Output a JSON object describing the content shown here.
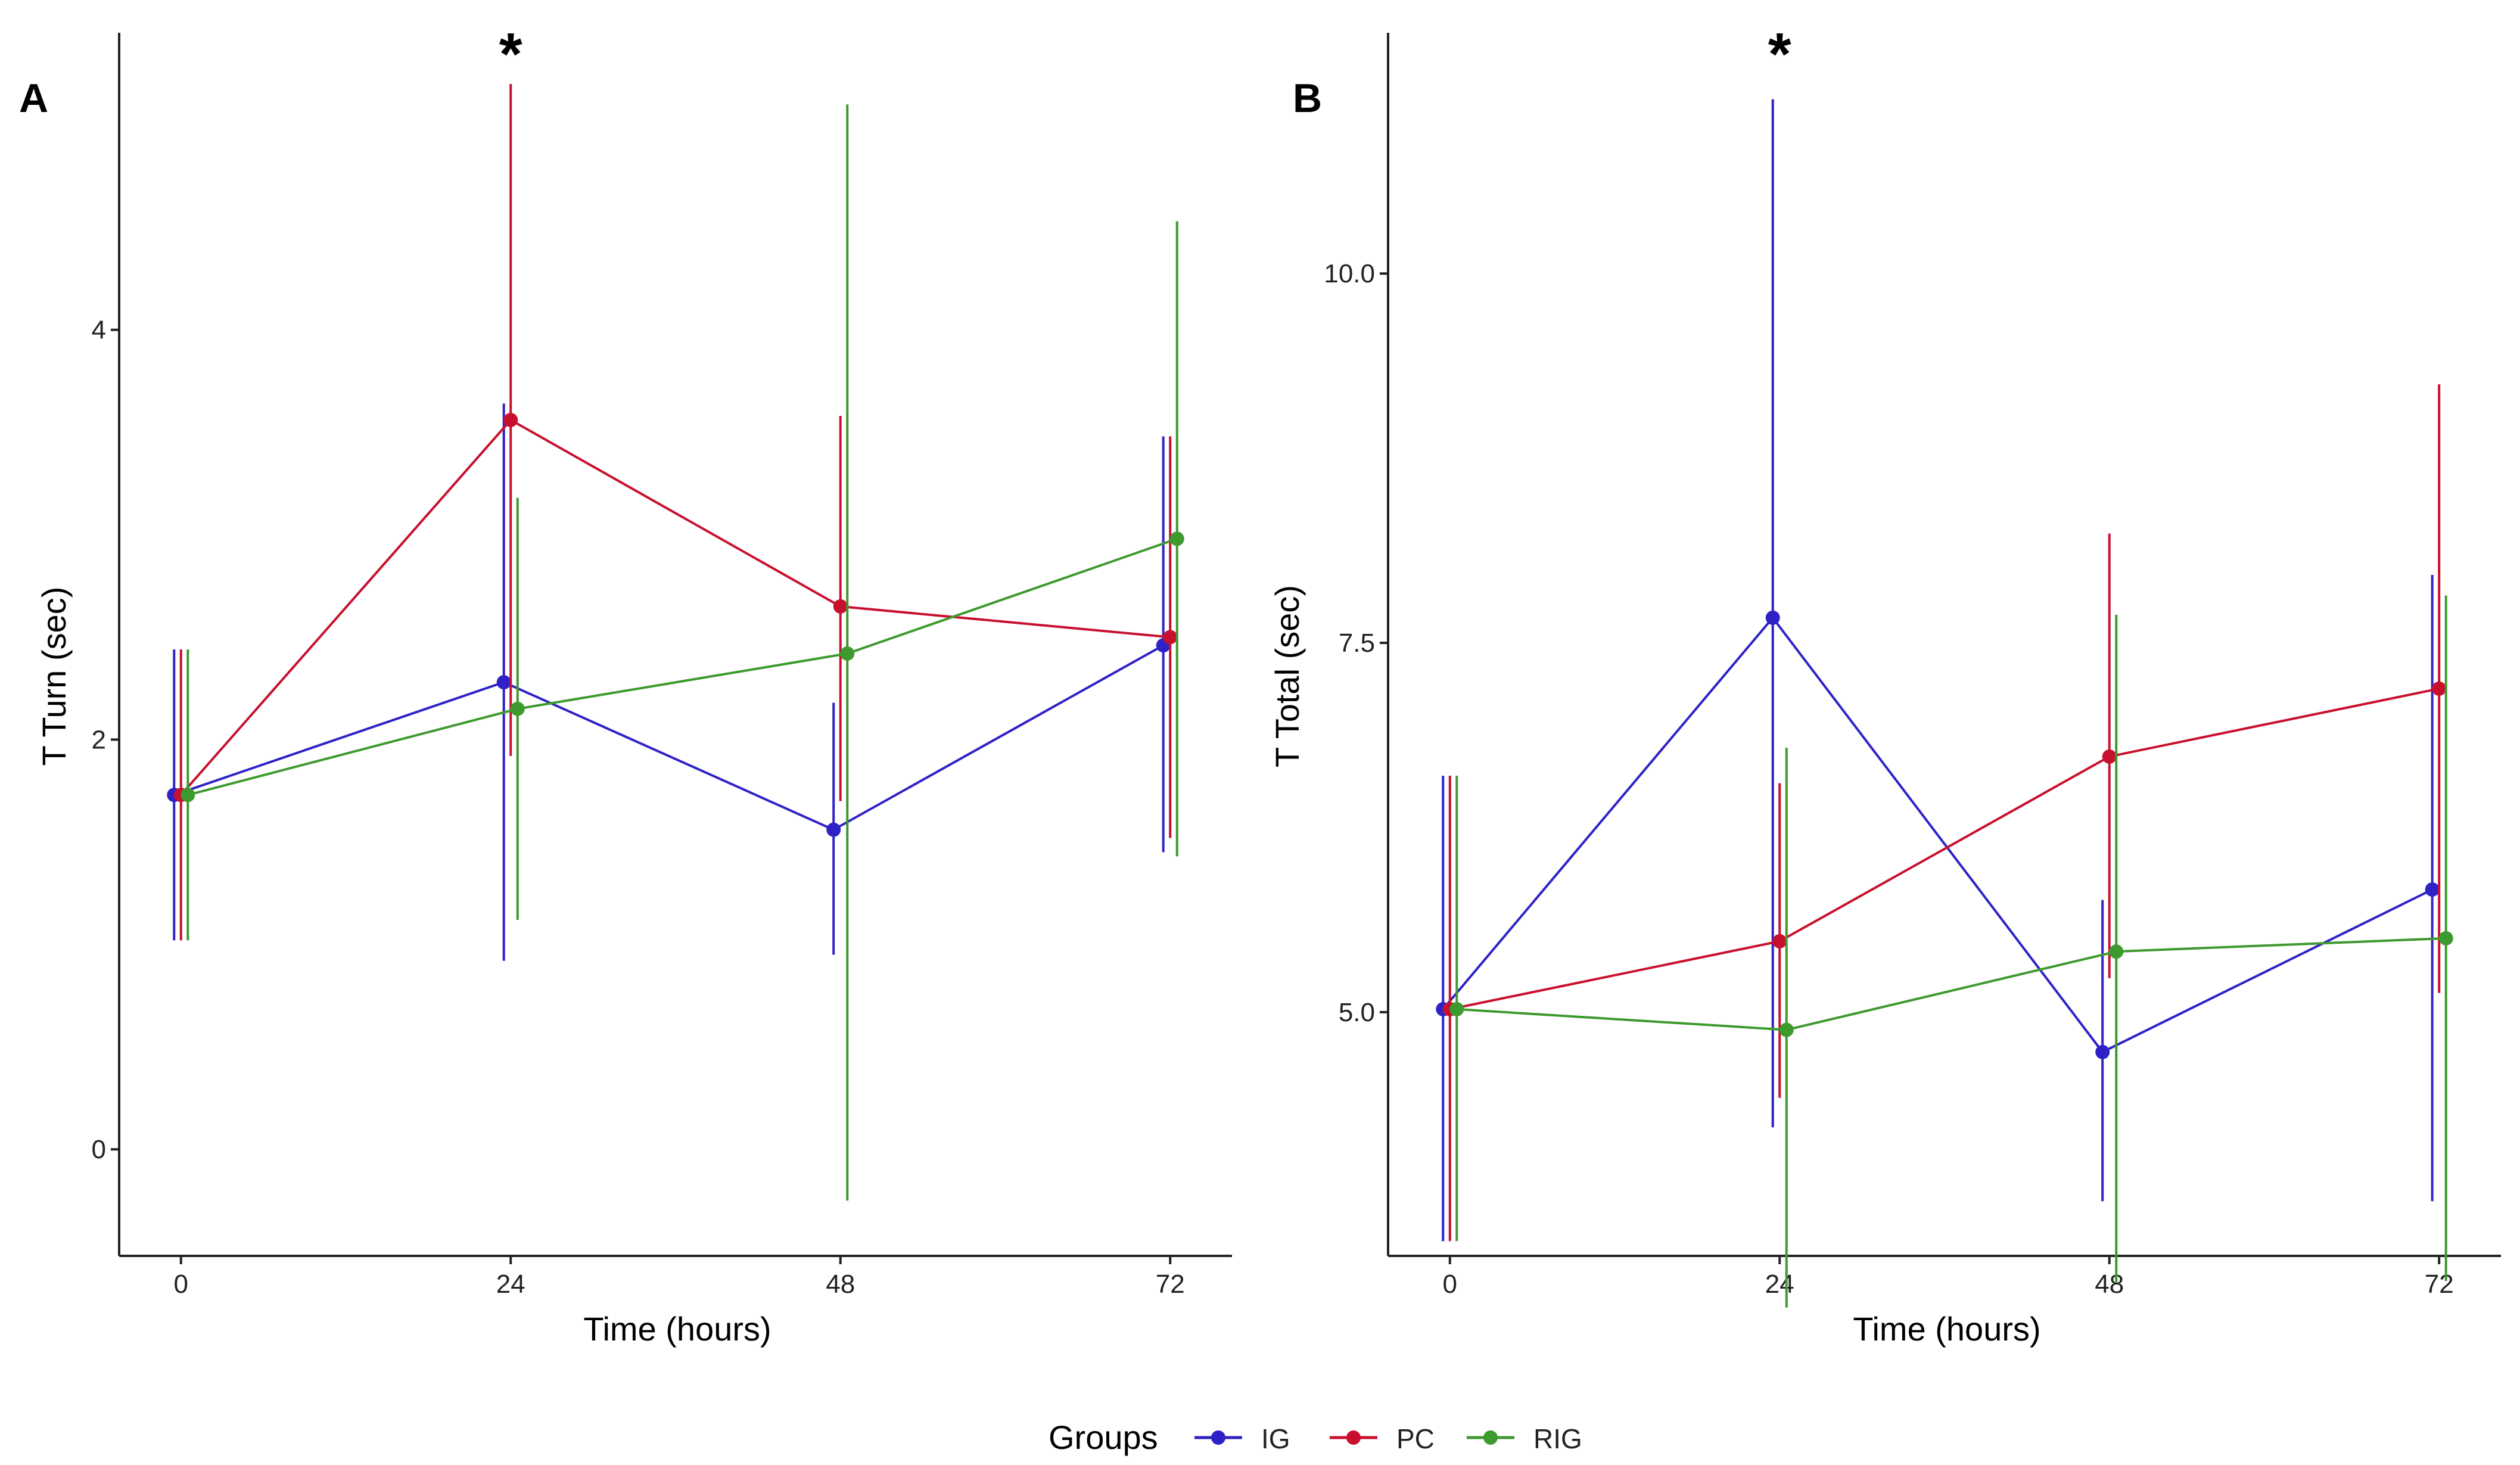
{
  "chart_data": [
    {
      "type": "line",
      "panel": "A",
      "title": "",
      "xlabel": "Time (hours)",
      "ylabel": "T Turn (sec)",
      "x": [
        0,
        24,
        48,
        72
      ],
      "x_ticks": [
        "0",
        "24",
        "48",
        "72"
      ],
      "y_ticks": [
        "0",
        "2",
        "4"
      ],
      "xlim": [
        -4.5,
        76.5
      ],
      "ylim": [
        -0.52,
        5.45
      ],
      "annotations": [
        {
          "text": "*",
          "x": 24
        }
      ],
      "series": [
        {
          "name": "IG",
          "color": "#2e22c7",
          "values": [
            1.73,
            2.28,
            1.56,
            2.46
          ],
          "lower": [
            1.02,
            0.92,
            0.95,
            1.45
          ],
          "upper": [
            2.44,
            3.64,
            2.18,
            3.48
          ]
        },
        {
          "name": "PC",
          "color": "#c8102e",
          "values": [
            1.73,
            3.56,
            2.65,
            2.5
          ],
          "lower": [
            1.02,
            1.92,
            1.7,
            1.52
          ],
          "upper": [
            2.44,
            5.2,
            3.58,
            3.48
          ]
        },
        {
          "name": "RIG",
          "color": "#3d9a2e",
          "values": [
            1.73,
            2.15,
            2.42,
            2.98
          ],
          "lower": [
            1.02,
            1.12,
            -0.25,
            1.43
          ],
          "upper": [
            2.44,
            3.18,
            5.1,
            4.53
          ]
        }
      ]
    },
    {
      "type": "line",
      "panel": "B",
      "title": "",
      "xlabel": "Time (hours)",
      "ylabel": "T Total (sec)",
      "x": [
        0,
        24,
        48,
        72
      ],
      "x_ticks": [
        "0",
        "24",
        "48",
        "72"
      ],
      "y_ticks": [
        "5.0",
        "7.5",
        "10.0"
      ],
      "xlim": [
        -4.5,
        76.5
      ],
      "ylim": [
        3.35,
        11.63
      ],
      "annotations": [
        {
          "text": "*",
          "x": 24
        }
      ],
      "series": [
        {
          "name": "IG",
          "color": "#2e22c7",
          "values": [
            5.02,
            7.67,
            4.73,
            5.83
          ],
          "lower": [
            3.45,
            4.22,
            3.72,
            3.72
          ],
          "upper": [
            6.6,
            11.18,
            5.76,
            7.96
          ]
        },
        {
          "name": "PC",
          "color": "#c8102e",
          "values": [
            5.02,
            5.48,
            6.73,
            7.19
          ],
          "lower": [
            3.45,
            4.42,
            5.23,
            5.13
          ],
          "upper": [
            6.6,
            6.55,
            8.24,
            9.25
          ]
        },
        {
          "name": "RIG",
          "color": "#3d9a2e",
          "values": [
            5.02,
            4.88,
            5.41,
            5.5
          ],
          "lower": [
            3.45,
            3.0,
            3.17,
            3.18
          ],
          "upper": [
            6.6,
            6.79,
            7.69,
            7.82
          ]
        }
      ]
    }
  ],
  "legend": {
    "title": "Groups",
    "items": [
      {
        "label": "IG",
        "color": "#2e22c7"
      },
      {
        "label": "PC",
        "color": "#c8102e"
      },
      {
        "label": "RIG",
        "color": "#3d9a2e"
      }
    ]
  }
}
